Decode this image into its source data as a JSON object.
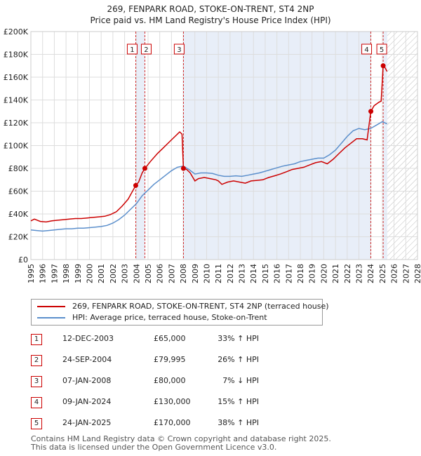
{
  "chart_data": {
    "type": "line",
    "title": "269, FENPARK ROAD, STOKE-ON-TRENT, ST4 2NP",
    "subtitle": "Price paid vs. HM Land Registry's House Price Index (HPI)",
    "xlim": [
      1995,
      2028
    ],
    "ylim": [
      0,
      200000
    ],
    "x_ticks": [
      1995,
      1996,
      1997,
      1998,
      1999,
      2000,
      2001,
      2002,
      2003,
      2004,
      2005,
      2006,
      2007,
      2008,
      2009,
      2010,
      2011,
      2012,
      2013,
      2014,
      2015,
      2016,
      2017,
      2018,
      2019,
      2020,
      2021,
      2022,
      2023,
      2024,
      2025,
      2026,
      2027,
      2028
    ],
    "y_ticks": [
      0,
      20000,
      40000,
      60000,
      80000,
      100000,
      120000,
      140000,
      160000,
      180000,
      200000
    ],
    "y_tick_labels": [
      "£0",
      "£20K",
      "£40K",
      "£60K",
      "£80K",
      "£100K",
      "£120K",
      "£140K",
      "£160K",
      "£180K",
      "£200K"
    ],
    "forecast_start": 2025.42,
    "colors": {
      "property": "#cc0000",
      "hpi": "#5b8fcc",
      "shade": "#e8eef8"
    },
    "series": [
      {
        "name": "269, FENPARK ROAD, STOKE-ON-TRENT, ST4 2NP (terraced house)",
        "color": "#cc0000",
        "points": [
          [
            1995,
            34000
          ],
          [
            1995.3,
            35500
          ],
          [
            1995.8,
            33500
          ],
          [
            1996.3,
            33000
          ],
          [
            1996.8,
            34000
          ],
          [
            1997.3,
            34500
          ],
          [
            1997.8,
            35000
          ],
          [
            1998.3,
            35500
          ],
          [
            1998.8,
            36000
          ],
          [
            1999.3,
            36000
          ],
          [
            1999.8,
            36500
          ],
          [
            2000.3,
            37000
          ],
          [
            2000.8,
            37500
          ],
          [
            2001.3,
            38000
          ],
          [
            2001.8,
            39500
          ],
          [
            2002.3,
            42000
          ],
          [
            2002.8,
            47000
          ],
          [
            2003.3,
            53000
          ],
          [
            2003.95,
            65000
          ],
          [
            2004.2,
            68000
          ],
          [
            2004.5,
            76000
          ],
          [
            2004.73,
            79995
          ],
          [
            2005.2,
            86000
          ],
          [
            2005.8,
            93000
          ],
          [
            2006.3,
            98000
          ],
          [
            2006.8,
            103000
          ],
          [
            2007.3,
            108000
          ],
          [
            2007.7,
            112000
          ],
          [
            2007.9,
            110000
          ],
          [
            2008.02,
            80000
          ],
          [
            2008.3,
            79000
          ],
          [
            2008.6,
            76000
          ],
          [
            2009.0,
            69000
          ],
          [
            2009.3,
            71000
          ],
          [
            2009.8,
            72000
          ],
          [
            2010.3,
            71000
          ],
          [
            2010.8,
            70000
          ],
          [
            2011.0,
            69000
          ],
          [
            2011.3,
            66000
          ],
          [
            2011.8,
            68000
          ],
          [
            2012.3,
            69000
          ],
          [
            2012.8,
            68000
          ],
          [
            2013.3,
            67000
          ],
          [
            2013.8,
            69000
          ],
          [
            2014.3,
            69500
          ],
          [
            2014.8,
            70000
          ],
          [
            2015.3,
            72000
          ],
          [
            2015.8,
            73500
          ],
          [
            2016.3,
            75000
          ],
          [
            2016.8,
            77000
          ],
          [
            2017.3,
            79000
          ],
          [
            2017.8,
            80000
          ],
          [
            2018.3,
            81000
          ],
          [
            2018.8,
            83000
          ],
          [
            2019.3,
            85000
          ],
          [
            2019.8,
            86000
          ],
          [
            2020.3,
            84000
          ],
          [
            2020.8,
            88000
          ],
          [
            2021.3,
            93000
          ],
          [
            2021.8,
            98000
          ],
          [
            2022.3,
            102000
          ],
          [
            2022.8,
            106000
          ],
          [
            2023.3,
            106000
          ],
          [
            2023.7,
            105000
          ],
          [
            2024.02,
            130000
          ],
          [
            2024.3,
            135000
          ],
          [
            2024.7,
            138000
          ],
          [
            2024.9,
            139000
          ],
          [
            2025.07,
            170000
          ],
          [
            2025.25,
            168000
          ],
          [
            2025.4,
            165000
          ]
        ]
      },
      {
        "name": "HPI: Average price, terraced house, Stoke-on-Trent",
        "color": "#5b8fcc",
        "points": [
          [
            1995,
            26000
          ],
          [
            1995.5,
            25500
          ],
          [
            1996,
            25000
          ],
          [
            1996.5,
            25500
          ],
          [
            1997,
            26000
          ],
          [
            1997.5,
            26500
          ],
          [
            1998,
            27000
          ],
          [
            1998.5,
            27000
          ],
          [
            1999,
            27500
          ],
          [
            1999.5,
            27500
          ],
          [
            2000,
            28000
          ],
          [
            2000.5,
            28500
          ],
          [
            2001,
            29000
          ],
          [
            2001.5,
            30000
          ],
          [
            2002,
            32000
          ],
          [
            2002.5,
            35000
          ],
          [
            2003,
            39000
          ],
          [
            2003.5,
            44000
          ],
          [
            2004,
            49000
          ],
          [
            2004.5,
            56000
          ],
          [
            2005,
            61000
          ],
          [
            2005.5,
            66000
          ],
          [
            2006,
            70000
          ],
          [
            2006.5,
            74000
          ],
          [
            2007,
            78000
          ],
          [
            2007.5,
            81000
          ],
          [
            2008,
            82000
          ],
          [
            2008.5,
            79000
          ],
          [
            2009,
            75000
          ],
          [
            2009.5,
            76000
          ],
          [
            2010,
            76000
          ],
          [
            2010.5,
            75500
          ],
          [
            2011,
            74000
          ],
          [
            2011.5,
            73000
          ],
          [
            2012,
            73000
          ],
          [
            2012.5,
            73500
          ],
          [
            2013,
            73000
          ],
          [
            2013.5,
            74000
          ],
          [
            2014,
            75000
          ],
          [
            2014.5,
            76000
          ],
          [
            2015,
            77500
          ],
          [
            2015.5,
            79000
          ],
          [
            2016,
            80500
          ],
          [
            2016.5,
            82000
          ],
          [
            2017,
            83000
          ],
          [
            2017.5,
            84000
          ],
          [
            2018,
            86000
          ],
          [
            2018.5,
            87000
          ],
          [
            2019,
            88000
          ],
          [
            2019.5,
            89000
          ],
          [
            2020,
            89000
          ],
          [
            2020.5,
            92000
          ],
          [
            2021,
            96000
          ],
          [
            2021.5,
            102000
          ],
          [
            2022,
            108000
          ],
          [
            2022.5,
            113000
          ],
          [
            2023,
            115000
          ],
          [
            2023.5,
            114000
          ],
          [
            2024,
            115000
          ],
          [
            2024.5,
            118000
          ],
          [
            2025,
            121000
          ],
          [
            2025.4,
            119000
          ]
        ]
      }
    ],
    "transactions": [
      {
        "num": "1",
        "x": 2003.95,
        "price": 65000,
        "date": "12-DEC-2003",
        "price_label": "£65,000",
        "hpi_label": "33% ↑ HPI"
      },
      {
        "num": "2",
        "x": 2004.73,
        "price": 79995,
        "date": "24-SEP-2004",
        "price_label": "£79,995",
        "hpi_label": "26% ↑ HPI"
      },
      {
        "num": "3",
        "x": 2008.02,
        "price": 80000,
        "date": "07-JAN-2008",
        "price_label": "£80,000",
        "hpi_label": "7% ↓ HPI"
      },
      {
        "num": "4",
        "x": 2024.02,
        "price": 130000,
        "date": "09-JAN-2024",
        "price_label": "£130,000",
        "hpi_label": "15% ↑ HPI"
      },
      {
        "num": "5",
        "x": 2025.07,
        "price": 170000,
        "date": "24-JAN-2025",
        "price_label": "£170,000",
        "hpi_label": "38% ↑ HPI"
      }
    ]
  },
  "legend": {
    "property_label": "269, FENPARK ROAD, STOKE-ON-TRENT, ST4 2NP (terraced house)",
    "hpi_label": "HPI: Average price, terraced house, Stoke-on-Trent"
  },
  "footer": {
    "line1": "Contains HM Land Registry data © Crown copyright and database right 2025.",
    "line2": "This data is licensed under the Open Government Licence v3.0."
  }
}
